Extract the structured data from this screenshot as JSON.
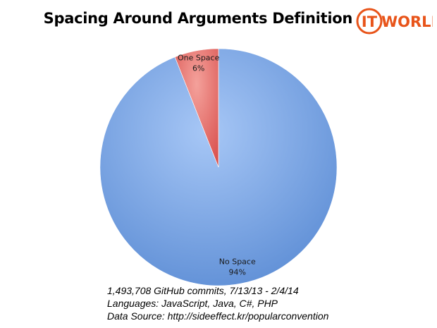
{
  "chart_data": {
    "type": "pie",
    "title": "Spacing Around Arguments Definition",
    "slices": [
      {
        "label": "No Space",
        "value": 94,
        "value_label": "94%",
        "color": "#7fa7e4"
      },
      {
        "label": "One Space",
        "value": 6,
        "value_label": "6%",
        "color": "#e4716f"
      }
    ],
    "start": "top",
    "direction": "clockwise",
    "first_slice": "No Space"
  },
  "logo": {
    "text_left": "IT",
    "text_right": "WORLD",
    "color": "#e8541a"
  },
  "notes": [
    "1,493,708 GitHub commits, 7/13/13 - 2/4/14",
    "Languages: JavaScript, Java, C#, PHP",
    "Data Source: http://sideeffect.kr/popularconvention"
  ]
}
